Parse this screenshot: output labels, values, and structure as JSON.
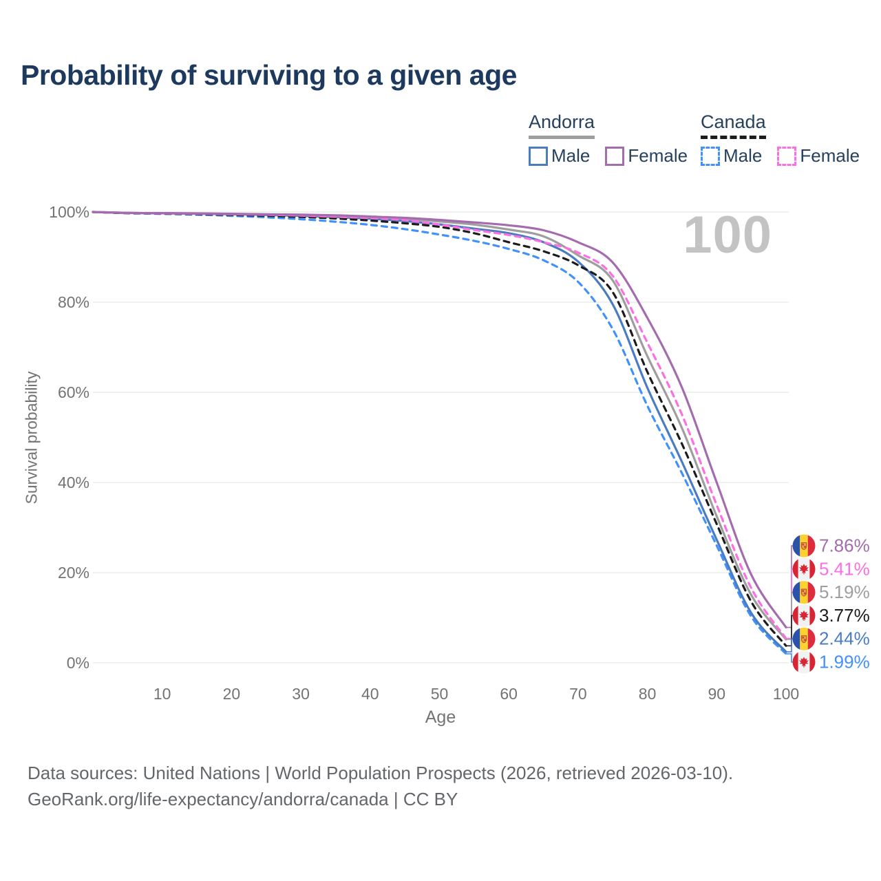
{
  "title": "Probability of surviving to a given age",
  "watermark": "100",
  "colors": {
    "andorra_male": "#4A7CC2",
    "andorra_female": "#A46BAE",
    "andorra_all": "#9E9E9E",
    "canada_male": "#4191FB",
    "canada_female": "#FC6FE3",
    "canada_all": "#1C1C1C",
    "grid": "#EBEBEB",
    "axis_text": "#737373",
    "title_text": "#1D3A5E",
    "watermark_text": "#C3C3C3"
  },
  "legend": {
    "groups": [
      {
        "label": "Andorra",
        "line_style": "solid",
        "line_color": "#9E9E9E",
        "items": [
          {
            "label": "Male",
            "color": "#4A7CC2",
            "style": "solid"
          },
          {
            "label": "Female",
            "color": "#A46BAE",
            "style": "solid"
          }
        ]
      },
      {
        "label": "Canada",
        "line_style": "dashed",
        "line_color": "#1C1C1C",
        "items": [
          {
            "label": "Male",
            "color": "#4191FB",
            "style": "dashed"
          },
          {
            "label": "Female",
            "color": "#FC6FE3",
            "style": "dashed"
          }
        ]
      }
    ]
  },
  "chart_data": {
    "type": "line",
    "title": "Probability of surviving to a given age",
    "xlabel": "Age",
    "ylabel": "Survival probability",
    "xlim": [
      0,
      100
    ],
    "ylim": [
      0,
      100
    ],
    "grid": "horizontal",
    "x_ticks": [
      10,
      20,
      30,
      40,
      50,
      60,
      70,
      80,
      90,
      100
    ],
    "y_ticks": [
      0,
      20,
      40,
      60,
      80,
      100
    ],
    "y_tick_labels": [
      "0%",
      "20%",
      "40%",
      "60%",
      "80%",
      "100%"
    ],
    "x": [
      0,
      5,
      10,
      15,
      20,
      25,
      30,
      35,
      40,
      45,
      50,
      55,
      60,
      65,
      70,
      75,
      80,
      85,
      90,
      95,
      100
    ],
    "series": [
      {
        "name": "Canada Male",
        "country": "Canada",
        "sex": "male",
        "flag": "canada",
        "color": "#4191FB",
        "dash": true,
        "end_label": "1.99%",
        "values": [
          100,
          99.72,
          99.58,
          99.4,
          99.15,
          98.82,
          98.4,
          97.85,
          97.15,
          96.2,
          95.0,
          93.6,
          91.8,
          89.3,
          84.5,
          74.0,
          57.0,
          42.0,
          26.0,
          10.2,
          1.99
        ]
      },
      {
        "name": "Andorra Male",
        "country": "Andorra",
        "sex": "male",
        "flag": "andorra",
        "color": "#4A7CC2",
        "dash": false,
        "end_label": "2.44%",
        "values": [
          100,
          99.79,
          99.71,
          99.62,
          99.5,
          99.35,
          99.15,
          98.88,
          98.5,
          98.0,
          97.25,
          96.3,
          95.3,
          93.3,
          89.0,
          79.5,
          61.0,
          44.5,
          27.3,
          11.0,
          2.44
        ]
      },
      {
        "name": "Canada",
        "country": "Canada",
        "sex": "all",
        "flag": "canada",
        "color": "#1C1C1C",
        "dash": true,
        "end_label": "3.77%",
        "values": [
          100,
          99.75,
          99.65,
          99.52,
          99.36,
          99.15,
          98.9,
          98.56,
          98.1,
          97.5,
          96.7,
          95.3,
          93.3,
          91.3,
          88.2,
          82.2,
          64.5,
          48.5,
          30.8,
          13.5,
          3.77
        ]
      },
      {
        "name": "Andorra",
        "country": "Andorra",
        "sex": "all",
        "flag": "andorra",
        "color": "#9E9E9E",
        "dash": false,
        "end_label": "5.19%",
        "values": [
          100,
          99.8,
          99.72,
          99.65,
          99.55,
          99.43,
          99.28,
          99.08,
          98.82,
          98.45,
          97.9,
          97.2,
          96.1,
          94.6,
          90.4,
          84.8,
          68.0,
          52.0,
          32.5,
          15.0,
          5.19
        ]
      },
      {
        "name": "Canada Female",
        "country": "Canada",
        "sex": "female",
        "flag": "canada",
        "color": "#FC6FE3",
        "dash": true,
        "end_label": "5.41%",
        "values": [
          100,
          99.8,
          99.7,
          99.62,
          99.5,
          99.38,
          99.2,
          98.95,
          98.65,
          98.2,
          97.2,
          96.0,
          94.9,
          93.3,
          91.0,
          85.8,
          71.0,
          55.0,
          35.0,
          16.5,
          5.41
        ]
      },
      {
        "name": "Andorra Female",
        "country": "Andorra",
        "sex": "female",
        "flag": "andorra",
        "color": "#A46BAE",
        "dash": false,
        "end_label": "7.86%",
        "values": [
          100,
          99.8,
          99.75,
          99.7,
          99.6,
          99.5,
          99.4,
          99.25,
          99.0,
          98.7,
          98.25,
          97.7,
          97.05,
          95.95,
          93.3,
          88.8,
          76.5,
          61.0,
          40.0,
          19.5,
          7.86
        ]
      }
    ]
  },
  "footer": {
    "line1": "Data sources: United Nations | World Population Prospects (2026, retrieved 2026-03-10).",
    "line2": "GeoRank.org/life-expectancy/andorra/canada | CC BY"
  }
}
